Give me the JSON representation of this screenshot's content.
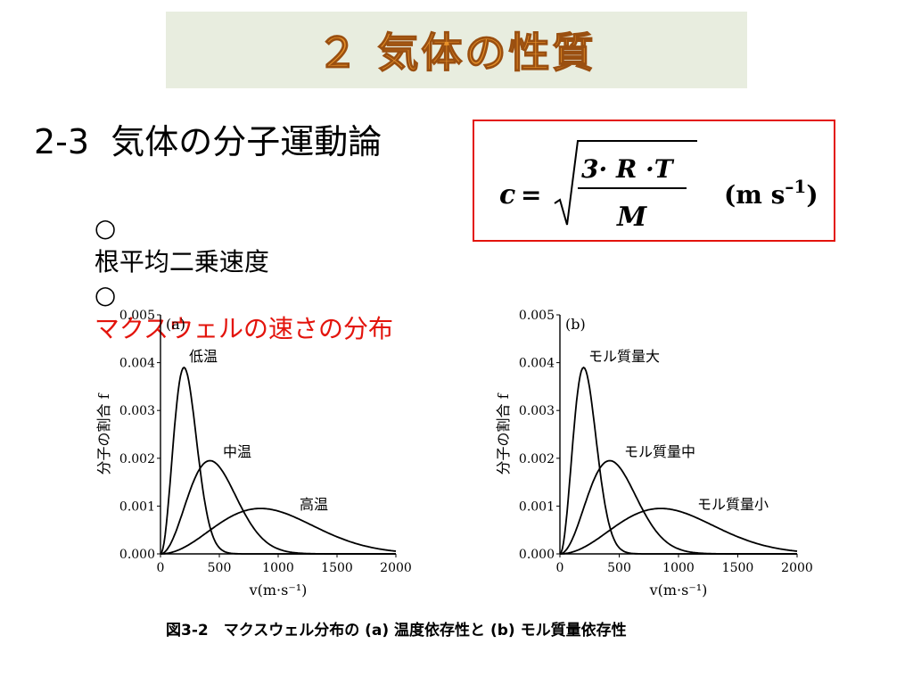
{
  "slide": {
    "title": "２ 気体の性質",
    "section": "2-3  気体の分子運動論",
    "bullets": [
      {
        "mark": "○",
        "text": "根平均二乗速度",
        "highlight": ""
      },
      {
        "mark": "○",
        "text": "",
        "highlight": "マクスウェルの速さの分布"
      }
    ],
    "formula": {
      "lhs": "c",
      "eq": "=",
      "numerator": "3· R ·T",
      "denominator": "M",
      "unit": "(m s",
      "unit_exp": "–1",
      "unit_close": ")"
    },
    "caption": "図3-2　マクスウェル分布の (a) 温度依存性と (b) モル質量依存性"
  },
  "colors": {
    "title_fill": "#e8922a",
    "title_bg": "#e8eddf",
    "accent_red": "#e3140c"
  },
  "chart_data": [
    {
      "type": "line",
      "panel_label": "(a)",
      "xlabel": "v(m·s⁻¹)",
      "ylabel": "分子の割合 f",
      "xlim": [
        0,
        2000
      ],
      "ylim": [
        0,
        0.005
      ],
      "xticks": [
        "0",
        "500",
        "1000",
        "1500",
        "2000"
      ],
      "yticks": [
        "0.000",
        "0.001",
        "0.002",
        "0.003",
        "0.004",
        "0.005"
      ],
      "series": [
        {
          "name": "低温",
          "peak_x": 200,
          "peak_y": 0.0039
        },
        {
          "name": "中温",
          "peak_x": 420,
          "peak_y": 0.00195
        },
        {
          "name": "高温",
          "peak_x": 850,
          "peak_y": 0.00095
        }
      ]
    },
    {
      "type": "line",
      "panel_label": "(b)",
      "xlabel": "v(m·s⁻¹)",
      "ylabel": "分子の割合 f",
      "xlim": [
        0,
        2000
      ],
      "ylim": [
        0,
        0.005
      ],
      "xticks": [
        "0",
        "500",
        "1000",
        "1500",
        "2000"
      ],
      "yticks": [
        "0.000",
        "0.001",
        "0.002",
        "0.003",
        "0.004",
        "0.005"
      ],
      "series": [
        {
          "name": "モル質量大",
          "peak_x": 200,
          "peak_y": 0.0039
        },
        {
          "name": "モル質量中",
          "peak_x": 420,
          "peak_y": 0.00195
        },
        {
          "name": "モル質量小",
          "peak_x": 850,
          "peak_y": 0.00095
        }
      ]
    }
  ]
}
